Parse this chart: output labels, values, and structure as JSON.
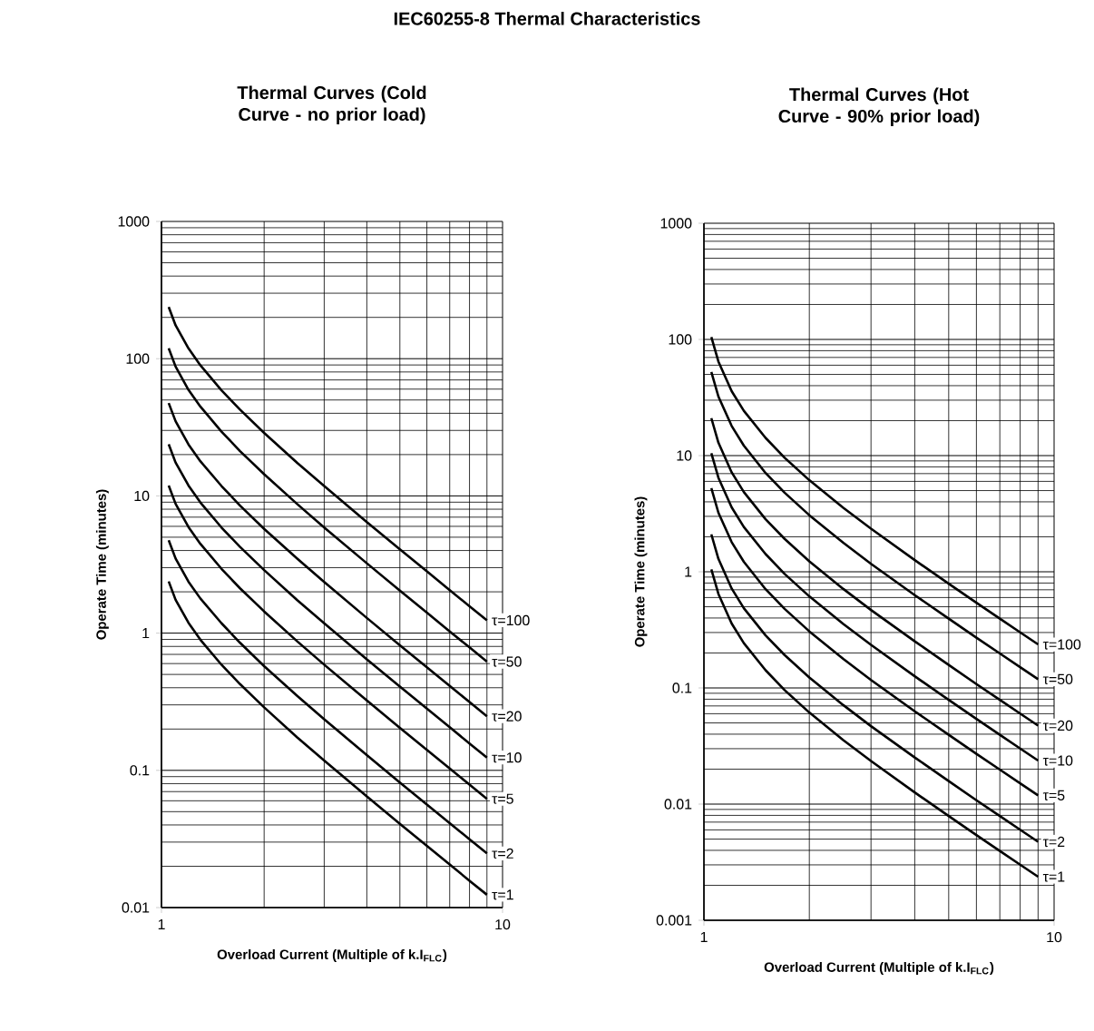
{
  "chart_data": [
    {
      "type": "line",
      "title": "Thermal Curves (Cold Curve - no prior load)",
      "xlabel": "Overload Current (Multiple of k.I$_{FLC}$)",
      "ylabel": "Operate Time (minutes)",
      "annotations": [
        "IEC60255-8 Thermal Characteristics"
      ],
      "log": "xy",
      "xlim": [
        1,
        10
      ],
      "ylim": [
        0.01,
        1000
      ],
      "xticks": [
        1,
        10
      ],
      "yticks": [
        0.01,
        0.1,
        1,
        10,
        100,
        1000
      ],
      "grid": true,
      "marker": "none",
      "line_style": "solid",
      "x": [
        1.05,
        1.1,
        1.2,
        1.3,
        1.5,
        1.7,
        2,
        2.5,
        3,
        4,
        5,
        6,
        7,
        8,
        9
      ],
      "series": [
        {
          "name": "τ=1",
          "color": "#000000",
          "values": [
            2.38,
            1.75,
            1.19,
            0.896,
            0.588,
            0.425,
            0.288,
            0.174,
            0.118,
            0.0645,
            0.0408,
            0.0282,
            0.0206,
            0.0157,
            0.0124
          ]
        },
        {
          "name": "τ=2",
          "color": "#000000",
          "values": [
            4.75,
            3.5,
            2.37,
            1.79,
            1.18,
            0.85,
            0.575,
            0.349,
            0.236,
            0.129,
            0.0816,
            0.0564,
            0.0412,
            0.0315,
            0.0248
          ]
        },
        {
          "name": "τ=5",
          "color": "#000000",
          "values": [
            11.9,
            8.76,
            5.93,
            4.48,
            2.94,
            2.12,
            1.44,
            0.872,
            0.589,
            0.323,
            0.204,
            0.141,
            0.103,
            0.0787,
            0.062
          ]
        },
        {
          "name": "τ=10",
          "color": "#000000",
          "values": [
            23.8,
            17.5,
            11.9,
            8.96,
            5.88,
            4.25,
            2.88,
            1.74,
            1.18,
            0.645,
            0.408,
            0.282,
            0.206,
            0.157,
            0.124
          ]
        },
        {
          "name": "τ=20",
          "color": "#000000",
          "values": [
            47.5,
            35,
            23.7,
            17.9,
            11.8,
            8.5,
            5.75,
            3.49,
            2.36,
            1.29,
            0.816,
            0.564,
            0.412,
            0.315,
            0.248
          ]
        },
        {
          "name": "τ=50",
          "color": "#000000",
          "values": [
            119,
            87.6,
            59.3,
            44.8,
            29.4,
            21.2,
            14.4,
            8.72,
            5.89,
            3.23,
            2.04,
            1.41,
            1.03,
            0.787,
            0.62
          ]
        },
        {
          "name": "τ=100",
          "color": "#000000",
          "values": [
            238,
            175,
            119,
            89.6,
            58.8,
            42.5,
            28.8,
            17.4,
            11.8,
            6.45,
            4.08,
            2.82,
            2.06,
            1.57,
            1.24
          ]
        }
      ]
    },
    {
      "type": "line",
      "title": "Thermal Curves (Hot Curve - 90% prior load)",
      "xlabel": "Overload Current (Multiple of k.I$_{FLC}$)",
      "ylabel": "Operate Time (minutes)",
      "log": "xy",
      "xlim": [
        1,
        10
      ],
      "ylim": [
        0.001,
        1000
      ],
      "xticks": [
        1,
        10
      ],
      "yticks": [
        0.001,
        0.01,
        0.1,
        1,
        10,
        100,
        1000
      ],
      "grid": true,
      "marker": "none",
      "line_style": "solid",
      "x": [
        1.05,
        1.1,
        1.2,
        1.3,
        1.5,
        1.7,
        2,
        2.5,
        3,
        4,
        5,
        6,
        7,
        8,
        9
      ],
      "series": [
        {
          "name": "τ=1",
          "color": "#000000",
          "values": [
            1.05,
            0.644,
            0.359,
            0.243,
            0.142,
            0.0958,
            0.0614,
            0.0356,
            0.0235,
            0.0126,
            0.00789,
            0.00541,
            0.00395,
            0.00301,
            0.00237
          ]
        },
        {
          "name": "τ=2",
          "color": "#000000",
          "values": [
            2.1,
            1.29,
            0.718,
            0.486,
            0.283,
            0.192,
            0.123,
            0.0712,
            0.0469,
            0.0252,
            0.0158,
            0.0108,
            0.0079,
            0.00602,
            0.00474
          ]
        },
        {
          "name": "τ=5",
          "color": "#000000",
          "values": [
            5.25,
            3.22,
            1.8,
            1.22,
            0.708,
            0.479,
            0.307,
            0.178,
            0.117,
            0.063,
            0.0395,
            0.0271,
            0.0198,
            0.0151,
            0.0119
          ]
        },
        {
          "name": "τ=10",
          "color": "#000000",
          "values": [
            10.5,
            6.44,
            3.59,
            2.43,
            1.42,
            0.958,
            0.614,
            0.356,
            0.235,
            0.126,
            0.0789,
            0.0541,
            0.0395,
            0.0301,
            0.0237
          ]
        },
        {
          "name": "τ=20",
          "color": "#000000",
          "values": [
            21,
            12.9,
            7.18,
            4.86,
            2.83,
            1.92,
            1.23,
            0.712,
            0.469,
            0.252,
            0.158,
            0.108,
            0.079,
            0.0602,
            0.0474
          ]
        },
        {
          "name": "τ=50",
          "color": "#000000",
          "values": [
            52.5,
            32.2,
            18,
            12.2,
            7.08,
            4.79,
            3.07,
            1.78,
            1.17,
            0.63,
            0.395,
            0.271,
            0.198,
            0.151,
            0.119
          ]
        },
        {
          "name": "τ=100",
          "color": "#000000",
          "values": [
            105,
            64.4,
            35.9,
            24.3,
            14.2,
            9.58,
            6.14,
            3.56,
            2.35,
            1.26,
            0.789,
            0.541,
            0.395,
            0.301,
            0.237
          ]
        }
      ]
    }
  ]
}
